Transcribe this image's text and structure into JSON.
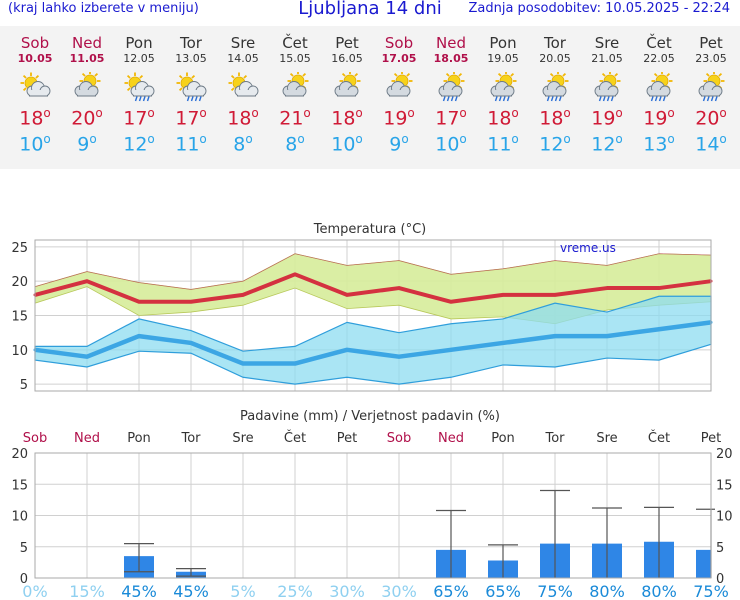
{
  "header": {
    "menu_hint": "(kraj lahko izberete v meniju)",
    "title": "Ljubljana 14 dni",
    "last_update": "Zadnja posodobitev: 10.05.2025 - 22:24"
  },
  "days": [
    {
      "name": "Sob",
      "date": "10.05",
      "weekend": true,
      "icon": "sun-cloud-icon",
      "tmax": "18",
      "tmin": "10"
    },
    {
      "name": "Ned",
      "date": "11.05",
      "weekend": true,
      "icon": "cloud-sun-icon",
      "tmax": "20",
      "tmin": "9"
    },
    {
      "name": "Pon",
      "date": "12.05",
      "weekend": false,
      "icon": "sun-cloud-rain-icon",
      "tmax": "17",
      "tmin": "12"
    },
    {
      "name": "Tor",
      "date": "13.05",
      "weekend": false,
      "icon": "sun-cloud-rain-icon",
      "tmax": "17",
      "tmin": "11"
    },
    {
      "name": "Sre",
      "date": "14.05",
      "weekend": false,
      "icon": "sun-cloud-icon",
      "tmax": "18",
      "tmin": "8"
    },
    {
      "name": "Čet",
      "date": "15.05",
      "weekend": false,
      "icon": "cloud-sun-icon",
      "tmax": "21",
      "tmin": "8"
    },
    {
      "name": "Pet",
      "date": "16.05",
      "weekend": false,
      "icon": "cloud-sun-icon",
      "tmax": "18",
      "tmin": "10"
    },
    {
      "name": "Sob",
      "date": "17.05",
      "weekend": true,
      "icon": "cloud-sun-icon",
      "tmax": "19",
      "tmin": "9"
    },
    {
      "name": "Ned",
      "date": "18.05",
      "weekend": true,
      "icon": "cloud-sun-rain-icon",
      "tmax": "17",
      "tmin": "10"
    },
    {
      "name": "Pon",
      "date": "19.05",
      "weekend": false,
      "icon": "cloud-sun-rain-icon",
      "tmax": "18",
      "tmin": "11"
    },
    {
      "name": "Tor",
      "date": "20.05",
      "weekend": false,
      "icon": "cloud-sun-rain-icon",
      "tmax": "18",
      "tmin": "12"
    },
    {
      "name": "Sre",
      "date": "21.05",
      "weekend": false,
      "icon": "cloud-sun-rain-icon",
      "tmax": "19",
      "tmin": "12"
    },
    {
      "name": "Čet",
      "date": "22.05",
      "weekend": false,
      "icon": "cloud-sun-rain-icon",
      "tmax": "19",
      "tmin": "13"
    },
    {
      "name": "Pet",
      "date": "23.05",
      "weekend": false,
      "icon": "cloud-sun-rain-icon",
      "tmax": "20",
      "tmin": "14"
    }
  ],
  "degree_symbol": "o",
  "colors": {
    "max_line": "#d43140",
    "max_band": "#d6ec9a",
    "min_line": "#3ca6e4",
    "min_band": "#8edcf0",
    "overlap_band": "#7fcf8f",
    "precip_bar": "#2f86e6",
    "weekend": "#b0104a",
    "prob_label": "#1a8ad8"
  },
  "chart_data": [
    {
      "type": "line",
      "title": "Temperatura (°C)",
      "watermark": "vreme.us",
      "categories": [
        "Sob",
        "Ned",
        "Pon",
        "Tor",
        "Sre",
        "Čet",
        "Pet",
        "Sob",
        "Ned",
        "Pon",
        "Tor",
        "Sre",
        "Čet",
        "Pet"
      ],
      "ylim": [
        4,
        26
      ],
      "yticks": [
        5,
        10,
        15,
        20,
        25
      ],
      "grid": true,
      "series": [
        {
          "name": "max",
          "values": [
            18,
            20,
            17,
            17,
            18,
            21,
            18,
            19,
            17,
            18,
            18,
            19,
            19,
            20
          ],
          "band_low": [
            16.8,
            19.2,
            15,
            15.5,
            16.5,
            19,
            16,
            16.5,
            14.5,
            14.8,
            13.8,
            15.8,
            16.5,
            17
          ],
          "band_high": [
            19.2,
            21.4,
            19.8,
            18.8,
            20,
            24,
            22.3,
            23,
            21,
            21.8,
            23,
            22.3,
            24,
            23.8
          ]
        },
        {
          "name": "min",
          "values": [
            10,
            9,
            12,
            11,
            8,
            8,
            10,
            9,
            10,
            11,
            12,
            12,
            13,
            14
          ],
          "band_low": [
            8.5,
            7.5,
            9.8,
            9.5,
            6,
            5,
            6,
            5,
            6,
            7.8,
            7.5,
            8.8,
            8.5,
            10.8
          ],
          "band_high": [
            10.5,
            10.5,
            14.5,
            12.8,
            9.8,
            10.5,
            14,
            12.5,
            13.8,
            14.5,
            16.8,
            15.5,
            17.8,
            17.8
          ]
        }
      ]
    },
    {
      "type": "bar",
      "title": "Padavine (mm) / Verjetnost padavin (%)",
      "categories": [
        "Sob",
        "Ned",
        "Pon",
        "Tor",
        "Sre",
        "Čet",
        "Pet",
        "Sob",
        "Ned",
        "Pon",
        "Tor",
        "Sre",
        "Čet",
        "Pet"
      ],
      "ylim": [
        0,
        20
      ],
      "yticks": [
        0,
        5,
        10,
        15,
        20
      ],
      "grid": true,
      "values": [
        0,
        0,
        3.5,
        1.0,
        0,
        0,
        0,
        0,
        4.5,
        2.8,
        5.5,
        5.5,
        5.8,
        4.5
      ],
      "err_low": [
        0,
        0,
        1.0,
        0.3,
        0,
        0,
        0,
        0,
        0,
        0,
        0,
        0,
        0,
        0
      ],
      "err_high": [
        0,
        0,
        5.5,
        1.5,
        0,
        0,
        0,
        0,
        10.8,
        5.3,
        14,
        11.2,
        11.3,
        11
      ],
      "probability": [
        "0%",
        "15%",
        "45%",
        "45%",
        "5%",
        "25%",
        "30%",
        "30%",
        "65%",
        "65%",
        "75%",
        "80%",
        "80%",
        "75%"
      ]
    }
  ]
}
